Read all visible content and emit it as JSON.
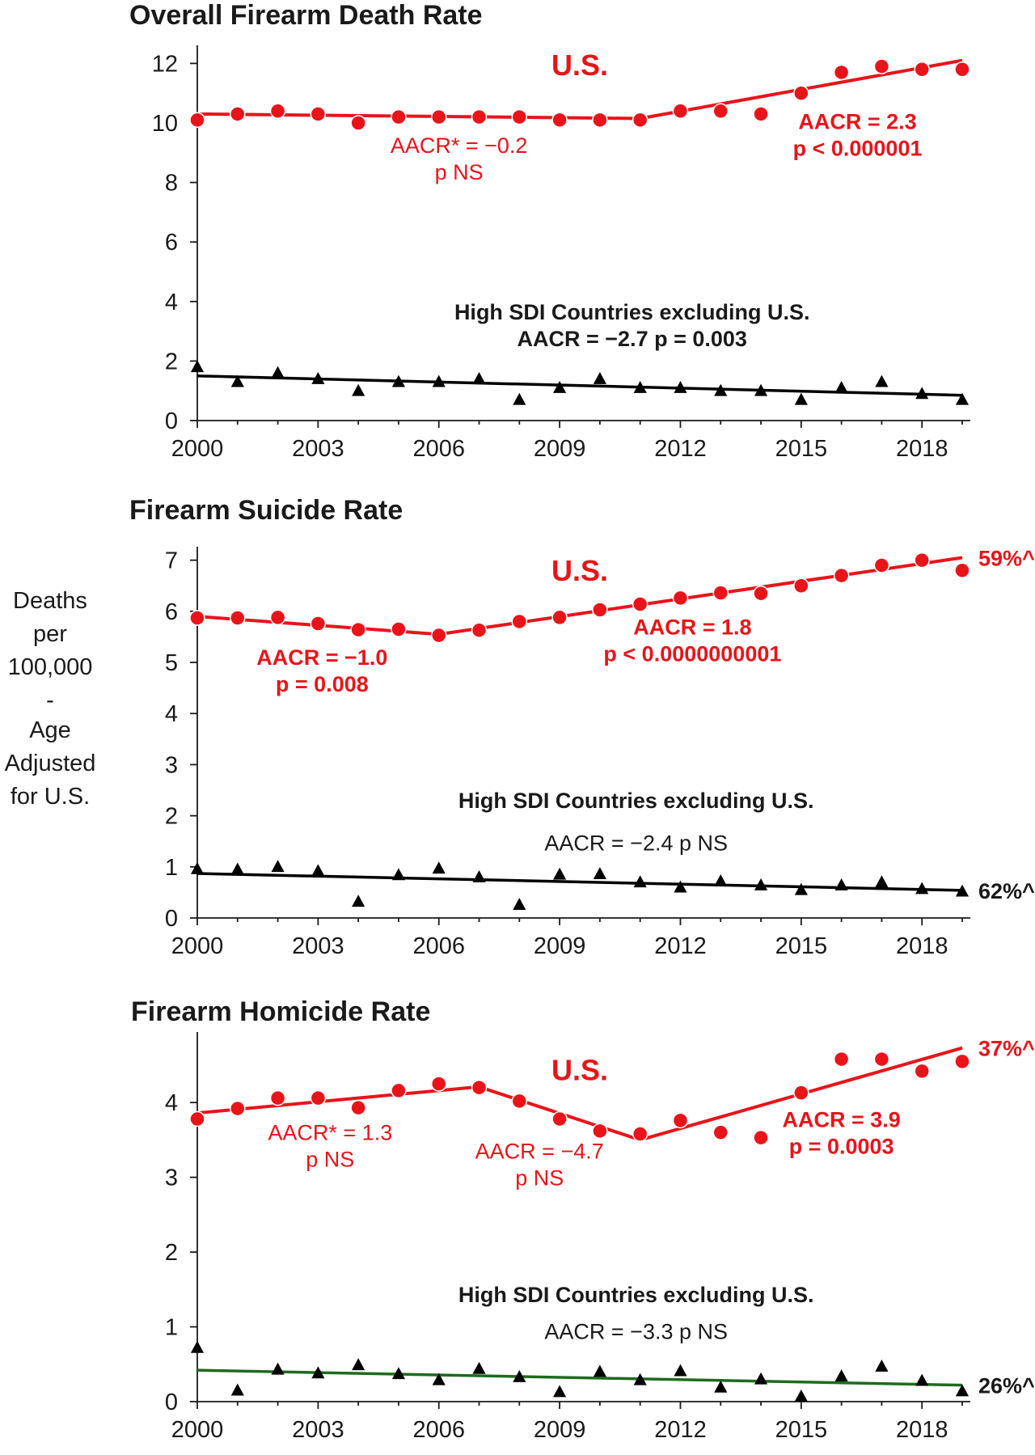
{
  "ylabel_lines": [
    "Deaths",
    "per",
    "100,000",
    "-",
    "Age",
    "Adjusted",
    "for U.S."
  ],
  "colors": {
    "us": "#e8141a",
    "high_sdi": "#000000",
    "high_sdi_homicide_trend": "#1e6b1e",
    "axis": "#1a1a1a"
  },
  "chart_data": [
    {
      "type": "scatter",
      "title": "Overall Firearm Death Rate",
      "xlabel": "",
      "ylabel": "Deaths per 100,000 - Age Adjusted for U.S.",
      "xlim": [
        2000,
        2019
      ],
      "ylim": [
        0,
        12.5
      ],
      "xticks": [
        2000,
        2003,
        2006,
        2009,
        2012,
        2015,
        2018
      ],
      "yticks": [
        0,
        2,
        4,
        6,
        8,
        10,
        12
      ],
      "grid": false,
      "x": [
        2000,
        2001,
        2002,
        2003,
        2004,
        2005,
        2006,
        2007,
        2008,
        2009,
        2010,
        2011,
        2012,
        2013,
        2014,
        2015,
        2016,
        2017,
        2018,
        2019
      ],
      "series": [
        {
          "name": "U.S.",
          "marker": "circle",
          "color": "#e8141a",
          "values": [
            10.1,
            10.3,
            10.4,
            10.3,
            10.0,
            10.2,
            10.2,
            10.2,
            10.2,
            10.1,
            10.1,
            10.1,
            10.4,
            10.4,
            10.3,
            11.0,
            11.7,
            11.9,
            11.8,
            11.8
          ],
          "trend": [
            [
              2000,
              10.3
            ],
            [
              2011,
              10.15
            ],
            [
              2019,
              12.1
            ]
          ]
        },
        {
          "name": "High SDI Countries excluding U.S.",
          "marker": "triangle",
          "color": "#000000",
          "values": [
            1.8,
            1.3,
            1.6,
            1.4,
            1.0,
            1.3,
            1.3,
            1.4,
            0.7,
            1.1,
            1.4,
            1.1,
            1.1,
            1.0,
            1.0,
            0.7,
            1.1,
            1.3,
            0.9,
            0.7
          ],
          "trend": [
            [
              2000,
              1.5
            ],
            [
              2019,
              0.85
            ]
          ]
        }
      ],
      "annotations": [
        {
          "series_label": "U.S.",
          "lines": [],
          "x": 2009.5,
          "y": 11.6,
          "style": "us-label",
          "color": "#e8141a"
        },
        {
          "lines": [
            "AACR* = −0.2",
            "p NS"
          ],
          "x": 2006.5,
          "y": 9.0,
          "style": "normal",
          "color": "#e8141a"
        },
        {
          "lines": [
            "AACR = 2.3",
            "p < 0.000001"
          ],
          "x": 2016.4,
          "y": 9.8,
          "style": "bold",
          "color": "#e8141a"
        },
        {
          "lines": [
            "High SDI Countries excluding U.S.",
            "AACR = −2.7  p = 0.003"
          ],
          "x": 2010.8,
          "y": 3.4,
          "style": "bold",
          "color": "#1a1a1a"
        }
      ]
    },
    {
      "type": "scatter",
      "title": "Firearm Suicide Rate",
      "xlabel": "",
      "ylabel": "Deaths per 100,000 - Age Adjusted for U.S.",
      "xlim": [
        2000,
        2019
      ],
      "ylim": [
        0,
        7.2
      ],
      "xticks": [
        2000,
        2003,
        2006,
        2009,
        2012,
        2015,
        2018
      ],
      "yticks": [
        0,
        1,
        2,
        3,
        4,
        5,
        6,
        7
      ],
      "grid": false,
      "x": [
        2000,
        2001,
        2002,
        2003,
        2004,
        2005,
        2006,
        2007,
        2008,
        2009,
        2010,
        2011,
        2012,
        2013,
        2014,
        2015,
        2016,
        2017,
        2018,
        2019
      ],
      "series": [
        {
          "name": "U.S.",
          "marker": "circle",
          "color": "#e8141a",
          "values": [
            5.87,
            5.87,
            5.88,
            5.76,
            5.64,
            5.65,
            5.53,
            5.63,
            5.8,
            5.88,
            6.03,
            6.14,
            6.26,
            6.36,
            6.35,
            6.5,
            6.7,
            6.9,
            7.0,
            6.8
          ],
          "trend": [
            [
              2000,
              5.9
            ],
            [
              2006,
              5.55
            ],
            [
              2019,
              7.05
            ]
          ],
          "end_label": "59%^"
        },
        {
          "name": "High SDI Countries excluding U.S.",
          "marker": "triangle",
          "color": "#000000",
          "values": [
            0.96,
            0.95,
            1.0,
            0.92,
            0.32,
            0.84,
            0.97,
            0.8,
            0.26,
            0.85,
            0.86,
            0.7,
            0.6,
            0.72,
            0.64,
            0.55,
            0.64,
            0.7,
            0.57,
            0.52
          ],
          "trend": [
            [
              2000,
              0.87
            ],
            [
              2019,
              0.54
            ]
          ],
          "end_label": "62%^"
        }
      ],
      "annotations": [
        {
          "series_label": "U.S.",
          "lines": [],
          "x": 2009.5,
          "y": 6.6,
          "style": "us-label",
          "color": "#e8141a"
        },
        {
          "lines": [
            "AACR = −1.0",
            "p = 0.008"
          ],
          "x": 2003.1,
          "y": 4.95,
          "style": "bold",
          "color": "#e8141a"
        },
        {
          "lines": [
            "AACR = 1.8",
            "p < 0.0000000001"
          ],
          "x": 2012.3,
          "y": 5.55,
          "style": "bold",
          "color": "#e8141a"
        },
        {
          "lines": [
            "High SDI Countries excluding U.S."
          ],
          "x": 2010.9,
          "y": 2.15,
          "style": "bold",
          "color": "#1a1a1a"
        },
        {
          "lines": [
            "AACR = −2.4  p NS"
          ],
          "x": 2010.9,
          "y": 1.32,
          "style": "normal",
          "color": "#1a1a1a"
        }
      ]
    },
    {
      "type": "scatter",
      "title": "Firearm Homicide Rate",
      "xlabel": "",
      "ylabel": "Deaths per 100,000 - Age Adjusted for U.S.",
      "xlim": [
        2000,
        2019
      ],
      "ylim": [
        0,
        4.9
      ],
      "xticks": [
        2000,
        2003,
        2006,
        2009,
        2012,
        2015,
        2018
      ],
      "yticks": [
        0,
        1,
        2,
        3,
        4
      ],
      "grid": false,
      "x": [
        2000,
        2001,
        2002,
        2003,
        2004,
        2005,
        2006,
        2007,
        2008,
        2009,
        2010,
        2011,
        2012,
        2013,
        2014,
        2015,
        2016,
        2017,
        2018,
        2019
      ],
      "series": [
        {
          "name": "U.S.",
          "marker": "circle",
          "color": "#e8141a",
          "values": [
            3.78,
            3.92,
            4.06,
            4.06,
            3.93,
            4.16,
            4.25,
            4.2,
            4.02,
            3.78,
            3.62,
            3.58,
            3.76,
            3.6,
            3.53,
            4.13,
            4.58,
            4.58,
            4.42,
            4.55
          ],
          "trend": [
            [
              2000,
              3.86
            ],
            [
              2007,
              4.21
            ],
            [
              2011,
              3.5
            ],
            [
              2019,
              4.73
            ]
          ],
          "end_label": "37%^"
        },
        {
          "name": "High SDI Countries excluding U.S.",
          "marker": "triangle",
          "color": "#000000",
          "trend_color": "#1e6b1e",
          "values": [
            0.72,
            0.15,
            0.43,
            0.38,
            0.49,
            0.37,
            0.29,
            0.44,
            0.33,
            0.13,
            0.4,
            0.29,
            0.41,
            0.19,
            0.3,
            0.07,
            0.34,
            0.47,
            0.28,
            0.14
          ],
          "trend": [
            [
              2000,
              0.42
            ],
            [
              2019,
              0.22
            ]
          ],
          "end_label": "26%^"
        }
      ],
      "annotations": [
        {
          "series_label": "U.S.",
          "lines": [],
          "x": 2009.5,
          "y": 4.3,
          "style": "us-label",
          "color": "#e8141a"
        },
        {
          "lines": [
            "AACR* = 1.3",
            "p NS"
          ],
          "x": 2003.3,
          "y": 3.5,
          "style": "normal",
          "color": "#e8141a"
        },
        {
          "lines": [
            "AACR = −4.7",
            "p NS"
          ],
          "x": 2008.5,
          "y": 3.25,
          "style": "normal",
          "color": "#e8141a"
        },
        {
          "lines": [
            "AACR = 3.9",
            "p = 0.0003"
          ],
          "x": 2016.0,
          "y": 3.67,
          "style": "bold",
          "color": "#e8141a"
        },
        {
          "lines": [
            "High SDI Countries excluding U.S."
          ],
          "x": 2010.9,
          "y": 1.33,
          "style": "bold",
          "color": "#1a1a1a"
        },
        {
          "lines": [
            "AACR = −3.3  p NS"
          ],
          "x": 2010.9,
          "y": 0.84,
          "style": "normal",
          "color": "#1a1a1a"
        }
      ]
    }
  ]
}
